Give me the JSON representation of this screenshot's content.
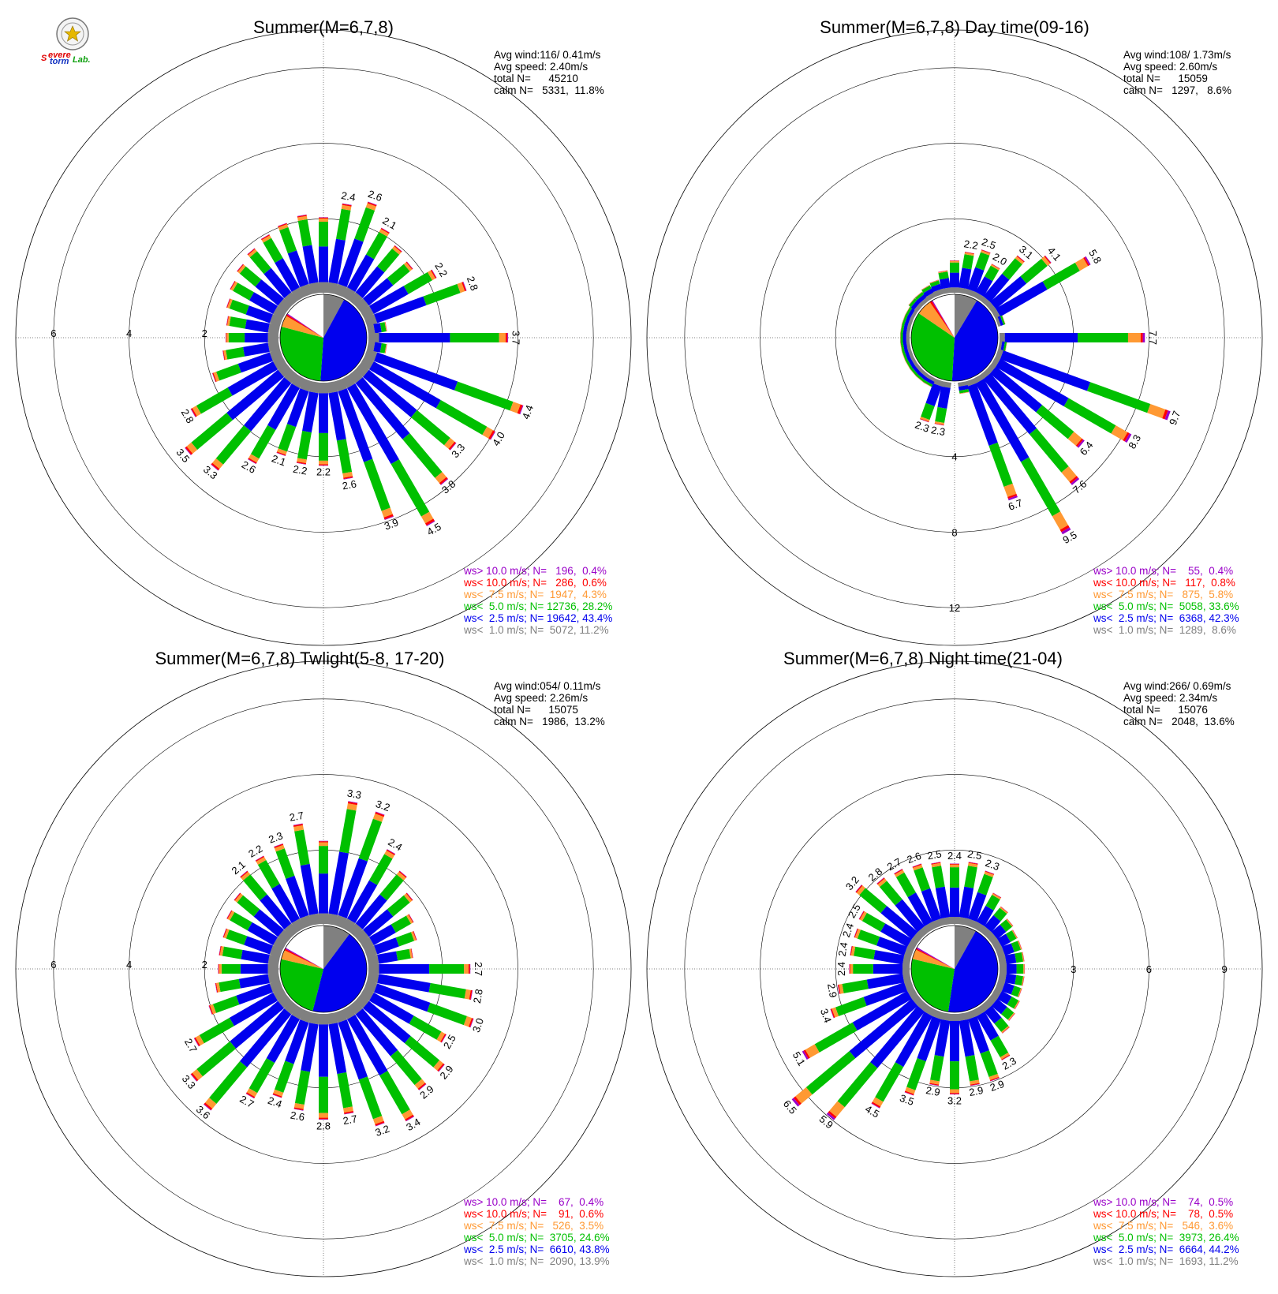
{
  "logo": {
    "text_s": "S",
    "text_severe": "evere",
    "text_storm": "torm",
    "text_lab": "Lab."
  },
  "colors": {
    "gt10": "#9a00c8",
    "lt10": "#ff0000",
    "lt7_5": "#ff9933",
    "lt5": "#00c000",
    "lt2_5": "#0000ee",
    "lt1": "#808080"
  },
  "chart_data": [
    {
      "type": "wind-rose",
      "title": "Summer(M=6,7,8)",
      "stats": [
        "Avg wind:116/ 0.41m/s",
        "Avg speed: 2.40m/s",
        "total N=      45210",
        "calm N=   5331,  11.8%"
      ],
      "radial_max": 7,
      "rings": [
        2,
        4,
        6
      ],
      "tick_labels_west": [
        "2",
        "4",
        "6"
      ],
      "tick_labels_south": [],
      "tick_labels_east": [],
      "pie_deg": {
        "lt1": 28.5,
        "lt2_5": 155.5,
        "lt5": 100.8,
        "lt7_5": 15.5,
        "lt10": 2.2,
        "gt10": 1.4
      },
      "bars": [
        {
          "dir": 0,
          "total": 2.0,
          "label": ""
        },
        {
          "dir": 10,
          "total": 2.4,
          "label": "2.4"
        },
        {
          "dir": 20,
          "total": 2.6,
          "label": "2.6"
        },
        {
          "dir": 30,
          "total": 2.1,
          "label": "2.1"
        },
        {
          "dir": 40,
          "total": 1.9,
          "label": ""
        },
        {
          "dir": 50,
          "total": 1.8,
          "label": ""
        },
        {
          "dir": 60,
          "total": 2.2,
          "label": "2.2"
        },
        {
          "dir": 70,
          "total": 2.8,
          "label": "2.8"
        },
        {
          "dir": 80,
          "total": 0.5,
          "label": ""
        },
        {
          "dir": 90,
          "total": 3.7,
          "label": "3.7"
        },
        {
          "dir": 100,
          "total": 0.5,
          "label": ""
        },
        {
          "dir": 110,
          "total": 4.4,
          "label": "4.4"
        },
        {
          "dir": 120,
          "total": 4.0,
          "label": "4.0"
        },
        {
          "dir": 130,
          "total": 3.3,
          "label": "3.3"
        },
        {
          "dir": 140,
          "total": 3.8,
          "label": "3.8"
        },
        {
          "dir": 150,
          "total": 4.5,
          "label": "4.5"
        },
        {
          "dir": 160,
          "total": 3.9,
          "label": "3.9"
        },
        {
          "dir": 170,
          "total": 2.6,
          "label": "2.6"
        },
        {
          "dir": 180,
          "total": 2.2,
          "label": "2.2"
        },
        {
          "dir": 190,
          "total": 2.2,
          "label": "2.2"
        },
        {
          "dir": 200,
          "total": 2.1,
          "label": "2.1"
        },
        {
          "dir": 210,
          "total": 2.6,
          "label": "2.6"
        },
        {
          "dir": 220,
          "total": 3.3,
          "label": "3.3"
        },
        {
          "dir": 230,
          "total": 3.5,
          "label": "3.5"
        },
        {
          "dir": 240,
          "total": 2.8,
          "label": "2.8"
        },
        {
          "dir": 250,
          "total": 1.9,
          "label": ""
        },
        {
          "dir": 260,
          "total": 1.5,
          "label": ""
        },
        {
          "dir": 270,
          "total": 1.4,
          "label": ""
        },
        {
          "dir": 280,
          "total": 1.4,
          "label": ""
        },
        {
          "dir": 290,
          "total": 1.5,
          "label": ""
        },
        {
          "dir": 300,
          "total": 1.6,
          "label": ""
        },
        {
          "dir": 310,
          "total": 1.7,
          "label": ""
        },
        {
          "dir": 320,
          "total": 1.8,
          "label": ""
        },
        {
          "dir": 330,
          "total": 1.9,
          "label": ""
        },
        {
          "dir": 340,
          "total": 2.0,
          "label": ""
        },
        {
          "dir": 350,
          "total": 2.1,
          "label": ""
        }
      ],
      "legend": [
        {
          "key": "gt10",
          "text": "ws> 10.0 m/s; N=   196,  0.4%"
        },
        {
          "key": "lt10",
          "text": "ws< 10.0 m/s; N=   286,  0.6%"
        },
        {
          "key": "lt7_5",
          "text": "ws<  7.5 m/s; N=  1947,  4.3%"
        },
        {
          "key": "lt5",
          "text": "ws<  5.0 m/s; N= 12736, 28.2%"
        },
        {
          "key": "lt2_5",
          "text": "ws<  2.5 m/s; N= 19642, 43.4%"
        },
        {
          "key": "lt1",
          "text": "ws<  1.0 m/s; N=  5072, 11.2%"
        }
      ]
    },
    {
      "type": "wind-rose",
      "title": "Summer(M=6,7,8) Day time(09-16)",
      "stats": [
        "Avg wind:108/ 1.73m/s",
        "Avg speed: 2.60m/s",
        "total N=      15059",
        "calm N=   1297,   8.6%"
      ],
      "radial_max": 14,
      "rings": [
        4,
        8,
        12
      ],
      "tick_labels_west": [],
      "tick_labels_south": [
        "4",
        "8",
        "12"
      ],
      "tick_labels_east": [],
      "pie_deg": {
        "lt1": 31.0,
        "lt2_5": 152.3,
        "lt5": 121.0,
        "lt7_5": 20.9,
        "lt10": 2.9,
        "gt10": 1.4
      },
      "bars": [
        {
          "dir": 0,
          "total": 1.7,
          "label": ""
        },
        {
          "dir": 10,
          "total": 2.2,
          "label": "2.2"
        },
        {
          "dir": 20,
          "total": 2.5,
          "label": "2.5"
        },
        {
          "dir": 30,
          "total": 2.0,
          "label": "2.0"
        },
        {
          "dir": 40,
          "total": 3.1,
          "label": "3.1"
        },
        {
          "dir": 50,
          "total": 4.1,
          "label": "4.1"
        },
        {
          "dir": 60,
          "total": 5.8,
          "label": "5.8"
        },
        {
          "dir": 70,
          "total": 0.4,
          "label": ""
        },
        {
          "dir": 90,
          "total": 7.7,
          "label": "7.7"
        },
        {
          "dir": 100,
          "total": 0.4,
          "label": ""
        },
        {
          "dir": 110,
          "total": 9.7,
          "label": "9.7"
        },
        {
          "dir": 120,
          "total": 8.3,
          "label": "8.3"
        },
        {
          "dir": 130,
          "total": 6.4,
          "label": "6.4"
        },
        {
          "dir": 140,
          "total": 7.6,
          "label": "7.6"
        },
        {
          "dir": 150,
          "total": 9.5,
          "label": "9.5"
        },
        {
          "dir": 160,
          "total": 6.7,
          "label": "6.7"
        },
        {
          "dir": 170,
          "total": 0.6,
          "label": ""
        },
        {
          "dir": 190,
          "total": 2.3,
          "label": "2.3"
        },
        {
          "dir": 200,
          "total": 2.3,
          "label": "2.3"
        },
        {
          "dir": 210,
          "total": 0.5,
          "label": ""
        },
        {
          "dir": 220,
          "total": 0.5,
          "label": ""
        },
        {
          "dir": 230,
          "total": 0.5,
          "label": ""
        },
        {
          "dir": 240,
          "total": 0.5,
          "label": ""
        },
        {
          "dir": 250,
          "total": 0.5,
          "label": ""
        },
        {
          "dir": 260,
          "total": 0.5,
          "label": ""
        },
        {
          "dir": 270,
          "total": 0.5,
          "label": ""
        },
        {
          "dir": 280,
          "total": 0.5,
          "label": ""
        },
        {
          "dir": 290,
          "total": 0.5,
          "label": ""
        },
        {
          "dir": 300,
          "total": 0.5,
          "label": ""
        },
        {
          "dir": 310,
          "total": 0.6,
          "label": ""
        },
        {
          "dir": 320,
          "total": 0.6,
          "label": ""
        },
        {
          "dir": 330,
          "total": 0.7,
          "label": ""
        },
        {
          "dir": 340,
          "total": 0.8,
          "label": ""
        },
        {
          "dir": 350,
          "total": 1.2,
          "label": ""
        }
      ],
      "legend": [
        {
          "key": "gt10",
          "text": "ws> 10.0 m/s; N=    55,  0.4%"
        },
        {
          "key": "lt10",
          "text": "ws< 10.0 m/s; N=   117,  0.8%"
        },
        {
          "key": "lt7_5",
          "text": "ws<  7.5 m/s; N=   875,  5.8%"
        },
        {
          "key": "lt5",
          "text": "ws<  5.0 m/s; N=  5058, 33.6%"
        },
        {
          "key": "lt2_5",
          "text": "ws<  2.5 m/s; N=  6368, 42.3%"
        },
        {
          "key": "lt1",
          "text": "ws<  1.0 m/s; N=  1289,  8.6%"
        }
      ]
    },
    {
      "type": "wind-rose",
      "title": "Summer(M=6,7,8) Twlight(5-8, 17-20)",
      "stats": [
        "Avg wind:054/ 0.11m/s",
        "Avg speed: 2.26m/s",
        "total N=      15075",
        "calm N=   1986,  13.2%"
      ],
      "radial_max": 7,
      "rings": [
        2,
        4,
        6
      ],
      "tick_labels_west": [
        "2",
        "4",
        "6"
      ],
      "tick_labels_south": [],
      "tick_labels_east": [],
      "pie_deg": {
        "lt1": 36.7,
        "lt2_5": 157.7,
        "lt5": 88.6,
        "lt7_5": 12.6,
        "lt10": 2.2,
        "gt10": 1.4
      },
      "bars": [
        {
          "dir": 0,
          "total": 2.2,
          "label": ""
        },
        {
          "dir": 10,
          "total": 3.3,
          "label": "3.3"
        },
        {
          "dir": 20,
          "total": 3.2,
          "label": "3.2"
        },
        {
          "dir": 30,
          "total": 2.4,
          "label": "2.4"
        },
        {
          "dir": 40,
          "total": 2.1,
          "label": ""
        },
        {
          "dir": 50,
          "total": 1.8,
          "label": ""
        },
        {
          "dir": 60,
          "total": 1.5,
          "label": ""
        },
        {
          "dir": 70,
          "total": 1.4,
          "label": ""
        },
        {
          "dir": 80,
          "total": 1.2,
          "label": ""
        },
        {
          "dir": 90,
          "total": 2.7,
          "label": "2.7"
        },
        {
          "dir": 100,
          "total": 2.8,
          "label": "2.8"
        },
        {
          "dir": 110,
          "total": 3.0,
          "label": "3.0"
        },
        {
          "dir": 120,
          "total": 2.5,
          "label": "2.5"
        },
        {
          "dir": 130,
          "total": 2.9,
          "label": "2.9"
        },
        {
          "dir": 140,
          "total": 2.9,
          "label": "2.9"
        },
        {
          "dir": 150,
          "total": 3.4,
          "label": "3.4"
        },
        {
          "dir": 160,
          "total": 3.2,
          "label": "3.2"
        },
        {
          "dir": 170,
          "total": 2.7,
          "label": "2.7"
        },
        {
          "dir": 180,
          "total": 2.8,
          "label": "2.8"
        },
        {
          "dir": 190,
          "total": 2.6,
          "label": "2.6"
        },
        {
          "dir": 200,
          "total": 2.4,
          "label": "2.4"
        },
        {
          "dir": 210,
          "total": 2.7,
          "label": "2.7"
        },
        {
          "dir": 220,
          "total": 3.6,
          "label": "3.6"
        },
        {
          "dir": 230,
          "total": 3.3,
          "label": "3.3"
        },
        {
          "dir": 240,
          "total": 2.7,
          "label": "2.7"
        },
        {
          "dir": 250,
          "total": 2.0,
          "label": ""
        },
        {
          "dir": 260,
          "total": 1.7,
          "label": ""
        },
        {
          "dir": 270,
          "total": 1.6,
          "label": ""
        },
        {
          "dir": 280,
          "total": 1.6,
          "label": ""
        },
        {
          "dir": 290,
          "total": 1.6,
          "label": ""
        },
        {
          "dir": 300,
          "total": 1.7,
          "label": ""
        },
        {
          "dir": 310,
          "total": 1.8,
          "label": ""
        },
        {
          "dir": 320,
          "total": 2.1,
          "label": "2.1"
        },
        {
          "dir": 330,
          "total": 2.2,
          "label": "2.2"
        },
        {
          "dir": 340,
          "total": 2.3,
          "label": "2.3"
        },
        {
          "dir": 350,
          "total": 2.7,
          "label": "2.7"
        }
      ],
      "legend": [
        {
          "key": "gt10",
          "text": "ws> 10.0 m/s; N=    67,  0.4%"
        },
        {
          "key": "lt10",
          "text": "ws< 10.0 m/s; N=    91,  0.6%"
        },
        {
          "key": "lt7_5",
          "text": "ws<  7.5 m/s; N=   526,  3.5%"
        },
        {
          "key": "lt5",
          "text": "ws<  5.0 m/s; N=  3705, 24.6%"
        },
        {
          "key": "lt2_5",
          "text": "ws<  2.5 m/s; N=  6610, 43.8%"
        },
        {
          "key": "lt1",
          "text": "ws<  1.0 m/s; N=  2090, 13.9%"
        }
      ]
    },
    {
      "type": "wind-rose",
      "title": "Summer(M=6,7,8) Night time(21-04)",
      "stats": [
        "Avg wind:266/ 0.69m/s",
        "Avg speed: 2.34m/s",
        "total N=      15076",
        "calm N=   2048,  13.6%"
      ],
      "radial_max": 10.5,
      "rings": [
        3,
        6,
        9
      ],
      "tick_labels_west": [],
      "tick_labels_south": [],
      "tick_labels_east": [
        "3",
        "6",
        "9"
      ],
      "pie_deg": {
        "lt1": 29.3,
        "lt2_5": 159.1,
        "lt5": 95.0,
        "lt7_5": 13.0,
        "lt10": 1.8,
        "gt10": 1.8
      },
      "bars": [
        {
          "dir": 0,
          "total": 2.4,
          "label": "2.4"
        },
        {
          "dir": 10,
          "total": 2.5,
          "label": "2.5"
        },
        {
          "dir": 20,
          "total": 2.3,
          "label": "2.3"
        },
        {
          "dir": 30,
          "total": 1.6,
          "label": ""
        },
        {
          "dir": 40,
          "total": 1.3,
          "label": ""
        },
        {
          "dir": 50,
          "total": 1.1,
          "label": ""
        },
        {
          "dir": 60,
          "total": 1.0,
          "label": ""
        },
        {
          "dir": 70,
          "total": 1.0,
          "label": ""
        },
        {
          "dir": 80,
          "total": 1.0,
          "label": ""
        },
        {
          "dir": 90,
          "total": 1.0,
          "label": ""
        },
        {
          "dir": 100,
          "total": 1.0,
          "label": ""
        },
        {
          "dir": 110,
          "total": 1.0,
          "label": ""
        },
        {
          "dir": 120,
          "total": 1.1,
          "label": ""
        },
        {
          "dir": 130,
          "total": 1.2,
          "label": ""
        },
        {
          "dir": 140,
          "total": 1.4,
          "label": ""
        },
        {
          "dir": 150,
          "total": 2.3,
          "label": "2.3"
        },
        {
          "dir": 160,
          "total": 2.9,
          "label": "2.9"
        },
        {
          "dir": 170,
          "total": 2.9,
          "label": "2.9"
        },
        {
          "dir": 180,
          "total": 3.2,
          "label": "3.2"
        },
        {
          "dir": 190,
          "total": 2.9,
          "label": "2.9"
        },
        {
          "dir": 200,
          "total": 3.5,
          "label": "3.5"
        },
        {
          "dir": 210,
          "total": 4.5,
          "label": "4.5"
        },
        {
          "dir": 220,
          "total": 5.9,
          "label": "5.9"
        },
        {
          "dir": 230,
          "total": 6.5,
          "label": "6.5"
        },
        {
          "dir": 240,
          "total": 5.1,
          "label": "5.1"
        },
        {
          "dir": 250,
          "total": 3.4,
          "label": "3.4"
        },
        {
          "dir": 260,
          "total": 2.9,
          "label": "2.9"
        },
        {
          "dir": 270,
          "total": 2.4,
          "label": "2.4"
        },
        {
          "dir": 280,
          "total": 2.4,
          "label": "2.4"
        },
        {
          "dir": 290,
          "total": 2.4,
          "label": "2.4"
        },
        {
          "dir": 300,
          "total": 2.5,
          "label": "2.5"
        },
        {
          "dir": 310,
          "total": 3.2,
          "label": "3.2"
        },
        {
          "dir": 320,
          "total": 2.8,
          "label": "2.8"
        },
        {
          "dir": 330,
          "total": 2.7,
          "label": "2.7"
        },
        {
          "dir": 340,
          "total": 2.6,
          "label": "2.6"
        },
        {
          "dir": 350,
          "total": 2.5,
          "label": "2.5"
        }
      ],
      "legend": [
        {
          "key": "gt10",
          "text": "ws> 10.0 m/s; N=    74,  0.5%"
        },
        {
          "key": "lt10",
          "text": "ws< 10.0 m/s; N=    78,  0.5%"
        },
        {
          "key": "lt7_5",
          "text": "ws<  7.5 m/s; N=   546,  3.6%"
        },
        {
          "key": "lt5",
          "text": "ws<  5.0 m/s; N=  3973, 26.4%"
        },
        {
          "key": "lt2_5",
          "text": "ws<  2.5 m/s; N=  6664, 44.2%"
        },
        {
          "key": "lt1",
          "text": "ws<  1.0 m/s; N=  1693, 11.2%"
        }
      ]
    }
  ]
}
